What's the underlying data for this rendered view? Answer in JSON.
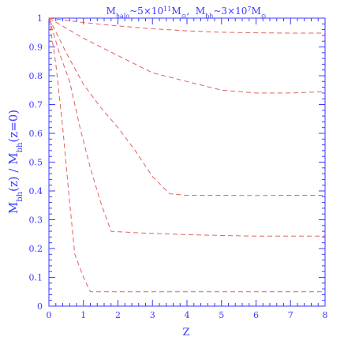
{
  "chart_data": {
    "type": "line",
    "title": {
      "m1": "M",
      "m1_sub": "halo",
      "t1": "~5×10",
      "t1_sup": "11",
      "t1_unit": "M",
      "t1_unit_sub": "⊙",
      "sep": ",  ",
      "m2": "M",
      "m2_sub": "bh",
      "t2": "~3×10",
      "t2_sup": "7",
      "t2_unit": "M",
      "t2_unit_sub": "⊙"
    },
    "xlabel": "Z",
    "ylabel": {
      "p1": "M",
      "p1_sub": "bh",
      "p2": "(z) / M",
      "p2_sub": "bh",
      "p3": "(z=0)"
    },
    "xlim": [
      0,
      8
    ],
    "ylim": [
      0,
      1
    ],
    "xticks": [
      "0",
      "1",
      "2",
      "3",
      "4",
      "5",
      "6",
      "7",
      "8"
    ],
    "yticks": [
      "0",
      "0.1",
      "0.2",
      "0.3",
      "0.4",
      "0.5",
      "0.6",
      "0.7",
      "0.8",
      "0.9",
      "1"
    ],
    "grid": false,
    "line_color": "#e06060",
    "axis_color": "#3a3aff",
    "series": [
      {
        "x": [
          0,
          1,
          2,
          3,
          4,
          5,
          6,
          7,
          8
        ],
        "y": [
          1.0,
          0.985,
          0.973,
          0.963,
          0.956,
          0.951,
          0.949,
          0.948,
          0.948
        ]
      },
      {
        "x": [
          0,
          1,
          2,
          3,
          4,
          5,
          6,
          7,
          8
        ],
        "y": [
          1.0,
          0.93,
          0.87,
          0.81,
          0.78,
          0.75,
          0.74,
          0.74,
          0.745
        ]
      },
      {
        "x": [
          0,
          0.5,
          1,
          1.5,
          2,
          2.5,
          3,
          3.5,
          4,
          5,
          6,
          7,
          8
        ],
        "y": [
          1.0,
          0.88,
          0.77,
          0.69,
          0.62,
          0.54,
          0.45,
          0.39,
          0.385,
          0.385,
          0.384,
          0.385,
          0.385
        ]
      },
      {
        "x": [
          0,
          0.3,
          0.6,
          0.9,
          1.2,
          1.5,
          1.8,
          2.5,
          4,
          6,
          8
        ],
        "y": [
          1.0,
          0.88,
          0.78,
          0.62,
          0.48,
          0.36,
          0.26,
          0.255,
          0.248,
          0.243,
          0.243
        ]
      },
      {
        "x": [
          0,
          0.2,
          0.4,
          0.6,
          0.75,
          1.0,
          1.2,
          2,
          4,
          6,
          8
        ],
        "y": [
          1.0,
          0.84,
          0.62,
          0.36,
          0.18,
          0.1,
          0.05,
          0.05,
          0.05,
          0.05,
          0.05
        ]
      }
    ]
  }
}
